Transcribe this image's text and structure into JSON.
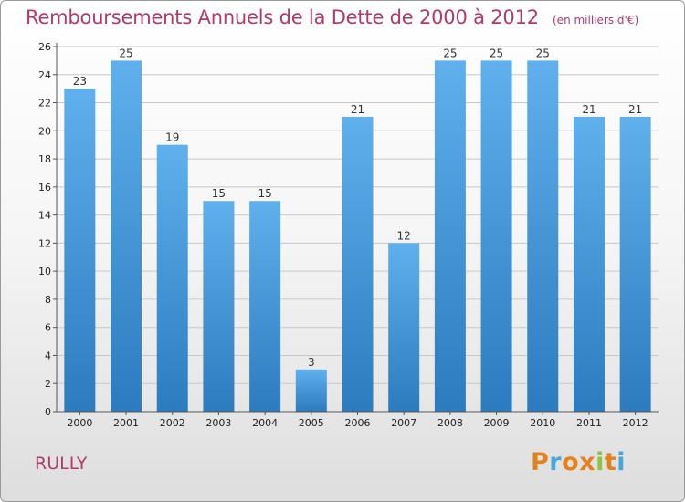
{
  "header": {
    "title": "Remboursements Annuels de la Dette de 2000 à 2012",
    "unit": "(en milliers d'€)"
  },
  "footer": {
    "commune": "RULLY",
    "logo_text": "Proxiti",
    "logo_colors": [
      "#e2821f",
      "#4aa6d8",
      "#e2821f",
      "#e2821f",
      "#8cc63f",
      "#e2821f",
      "#4aa6d8"
    ]
  },
  "colors": {
    "title": "#b5386a",
    "bar_top": "#5fb0ec",
    "bar_bottom": "#2c7bbf",
    "grid": "#c8c8c8"
  },
  "chart_data": {
    "type": "bar",
    "title": "Remboursements Annuels de la Dette de 2000 à 2012",
    "subtitle": "(en milliers d'€)",
    "xlabel": "",
    "ylabel": "",
    "ylim": [
      0,
      26
    ],
    "yticks": [
      0,
      2,
      4,
      6,
      8,
      10,
      12,
      14,
      16,
      18,
      20,
      22,
      24,
      26
    ],
    "grid": true,
    "categories": [
      "2000",
      "2001",
      "2002",
      "2003",
      "2004",
      "2005",
      "2006",
      "2007",
      "2008",
      "2009",
      "2010",
      "2011",
      "2012"
    ],
    "values": [
      23,
      25,
      19,
      15,
      15,
      3,
      21,
      12,
      25,
      25,
      25,
      21,
      21
    ]
  }
}
